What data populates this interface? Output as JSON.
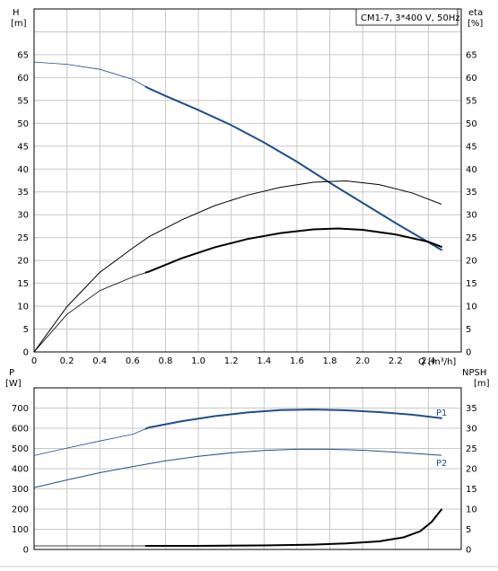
{
  "chart_data": [
    {
      "type": "line",
      "title": "CM1-7, 3*400 V, 50Hz",
      "xlabel": "Q [m³/h]",
      "ylabel_left": "H\n[m]",
      "ylabel_right": "eta\n[%]",
      "xlim": [
        0,
        2.6
      ],
      "ylim": [
        0,
        75
      ],
      "x_ticks": [
        "0",
        "0.2",
        "0.4",
        "0.6",
        "0.8",
        "1.0",
        "1.2",
        "1.4",
        "1.6",
        "1.8",
        "2.0",
        "2.2",
        "2.4"
      ],
      "y_ticks": [
        "0",
        "5",
        "10",
        "15",
        "20",
        "25",
        "30",
        "35",
        "40",
        "45",
        "50",
        "55",
        "60",
        "65"
      ],
      "grid": true,
      "series": [
        {
          "role": "head-curve",
          "color": "#1f4e8c",
          "points": [
            [
              0,
              63.4
            ],
            [
              0.2,
              62.9
            ],
            [
              0.4,
              61.8
            ],
            [
              0.6,
              59.6
            ],
            [
              0.7,
              57.6
            ],
            [
              0.8,
              56.0
            ],
            [
              1.0,
              52.9
            ],
            [
              1.2,
              49.6
            ],
            [
              1.4,
              45.8
            ],
            [
              1.6,
              41.6
            ],
            [
              1.8,
              37.0
            ],
            [
              2.0,
              32.6
            ],
            [
              2.2,
              28.2
            ],
            [
              2.4,
              24.0
            ],
            [
              2.48,
              22.3
            ]
          ],
          "bold_from": 0.68
        },
        {
          "role": "efficiency-curve-thin",
          "color": "#000000",
          "points": [
            [
              0,
              0
            ],
            [
              0.2,
              9.9
            ],
            [
              0.4,
              17.4
            ],
            [
              0.6,
              22.7
            ],
            [
              0.7,
              25.2
            ],
            [
              0.9,
              28.9
            ],
            [
              1.1,
              32.0
            ],
            [
              1.3,
              34.3
            ],
            [
              1.5,
              36.0
            ],
            [
              1.7,
              37.1
            ],
            [
              1.9,
              37.4
            ],
            [
              2.1,
              36.6
            ],
            [
              2.3,
              34.8
            ],
            [
              2.48,
              32.3
            ]
          ]
        },
        {
          "role": "efficiency-curve-bold",
          "color": "#000000",
          "points": [
            [
              0,
              0
            ],
            [
              0.2,
              8.2
            ],
            [
              0.4,
              13.4
            ],
            [
              0.6,
              16.4
            ],
            [
              0.7,
              17.6
            ],
            [
              0.9,
              20.5
            ],
            [
              1.1,
              22.9
            ],
            [
              1.3,
              24.7
            ],
            [
              1.5,
              26.0
            ],
            [
              1.7,
              26.8
            ],
            [
              1.85,
              27.0
            ],
            [
              2.0,
              26.7
            ],
            [
              2.2,
              25.7
            ],
            [
              2.4,
              24.1
            ],
            [
              2.48,
              23.0
            ]
          ],
          "bold_from": 0.68
        }
      ]
    },
    {
      "type": "line",
      "xlim": [
        0,
        2.6
      ],
      "ylabel_left": "P\n[W]",
      "ylabel_right": "NPSH\n[m]",
      "ylim_left": [
        0,
        800
      ],
      "ylim_right": [
        0,
        40
      ],
      "y_ticks_left": [
        "0",
        "100",
        "200",
        "300",
        "400",
        "500",
        "600",
        "700"
      ],
      "y_ticks_right": [
        "0",
        "5",
        "10",
        "15",
        "20",
        "25",
        "30",
        "35"
      ],
      "grid": true,
      "series": [
        {
          "name": "P1",
          "color": "#1f4e8c",
          "axis": "left",
          "points": [
            [
              0,
              465
            ],
            [
              0.2,
              502
            ],
            [
              0.4,
              537
            ],
            [
              0.6,
              570
            ],
            [
              0.7,
              604
            ],
            [
              0.9,
              635
            ],
            [
              1.1,
              660
            ],
            [
              1.3,
              678
            ],
            [
              1.5,
              690
            ],
            [
              1.7,
              693
            ],
            [
              1.9,
              689
            ],
            [
              2.1,
              680
            ],
            [
              2.3,
              667
            ],
            [
              2.48,
              650
            ]
          ],
          "bold_from": 0.68
        },
        {
          "name": "P2",
          "color": "#1f4e8c",
          "axis": "left",
          "points": [
            [
              0,
              306
            ],
            [
              0.2,
              344
            ],
            [
              0.4,
              380
            ],
            [
              0.6,
              410
            ],
            [
              0.8,
              439
            ],
            [
              1.0,
              461
            ],
            [
              1.2,
              478
            ],
            [
              1.4,
              490
            ],
            [
              1.6,
              496
            ],
            [
              1.8,
              496
            ],
            [
              2.0,
              491
            ],
            [
              2.2,
              482
            ],
            [
              2.48,
              466
            ]
          ]
        },
        {
          "role": "npsh-curve",
          "color": "#000000",
          "axis": "right",
          "points": [
            [
              0,
              0.9
            ],
            [
              0.68,
              0.9
            ],
            [
              1.0,
              0.9
            ],
            [
              1.4,
              1.0
            ],
            [
              1.7,
              1.2
            ],
            [
              1.9,
              1.5
            ],
            [
              2.1,
              2.0
            ],
            [
              2.25,
              3.0
            ],
            [
              2.35,
              4.5
            ],
            [
              2.42,
              6.8
            ],
            [
              2.48,
              9.9
            ]
          ],
          "bold_from": 0.68
        }
      ]
    }
  ]
}
